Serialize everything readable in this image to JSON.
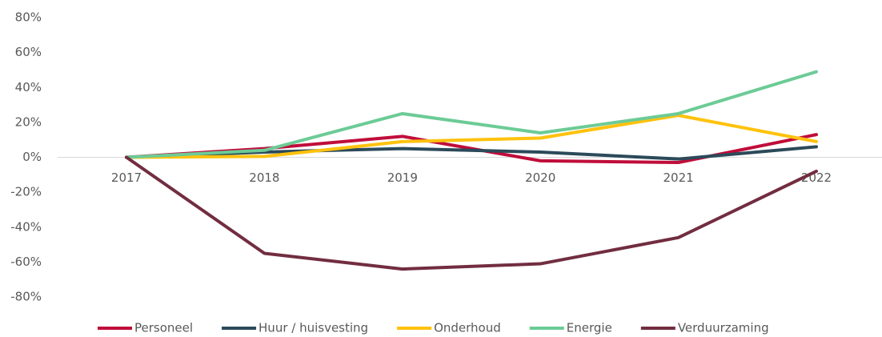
{
  "chart_data": {
    "type": "line",
    "categories": [
      "2017",
      "2018",
      "2019",
      "2020",
      "2021",
      "2022"
    ],
    "series": [
      {
        "name": "Personeel",
        "color": "#c00d3a",
        "values": [
          0,
          5,
          12,
          -2,
          -3,
          13
        ]
      },
      {
        "name": "Huur / huisvesting",
        "color": "#2b4a5a",
        "values": [
          0,
          3,
          5,
          3,
          -1,
          6
        ]
      },
      {
        "name": "Onderhoud",
        "color": "#ffc20e",
        "values": [
          0,
          0.5,
          9,
          11,
          24,
          9
        ]
      },
      {
        "name": "Energie",
        "color": "#6ccb96",
        "values": [
          0,
          4,
          25,
          14,
          25,
          49
        ]
      },
      {
        "name": "Verduurzaming",
        "color": "#722d40",
        "values": [
          0,
          -55,
          -64,
          -61,
          -46,
          -8
        ]
      }
    ],
    "ylim": [
      -80,
      80
    ],
    "yticks": [
      {
        "value": -80,
        "label": "-80%"
      },
      {
        "value": -60,
        "label": "-60%"
      },
      {
        "value": -40,
        "label": "-40%"
      },
      {
        "value": -20,
        "label": "-20%"
      },
      {
        "value": 0,
        "label": "0%"
      },
      {
        "value": 20,
        "label": "20%"
      },
      {
        "value": 40,
        "label": "40%"
      },
      {
        "value": 60,
        "label": "60%"
      },
      {
        "value": 80,
        "label": "80%"
      }
    ],
    "grid": false,
    "legend": "bottom"
  }
}
